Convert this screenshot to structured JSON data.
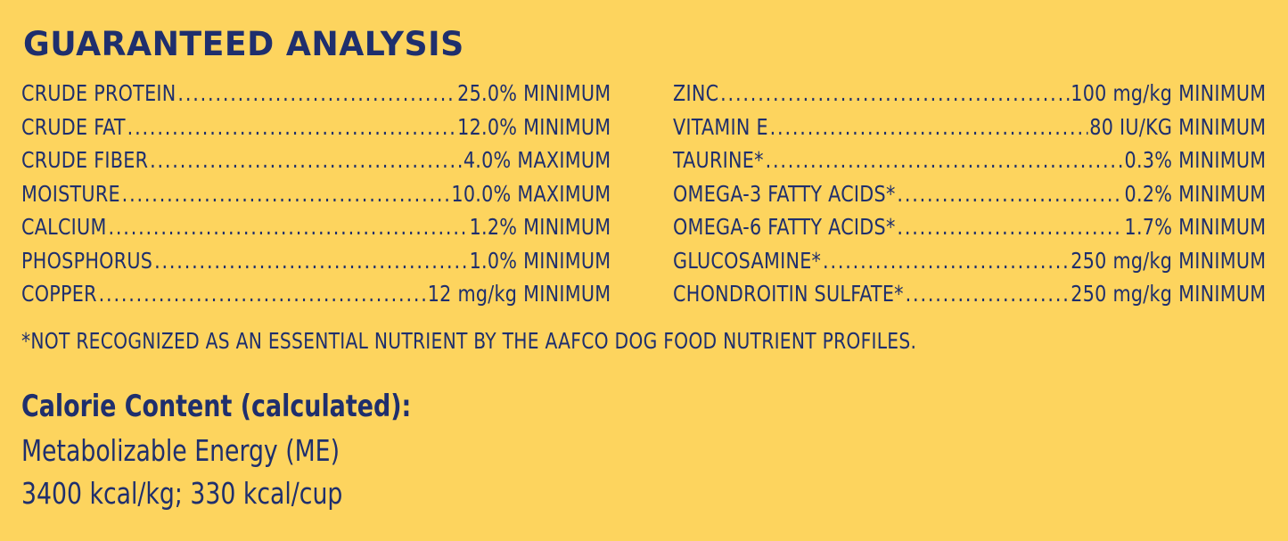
{
  "title": "GUARANTEED ANALYSIS",
  "left_column": [
    {
      "name": "CRUDE PROTEIN",
      "value": "25.0% MINIMUM"
    },
    {
      "name": "CRUDE FAT",
      "value": "12.0% MINIMUM"
    },
    {
      "name": "CRUDE FIBER",
      "value": "4.0% MAXIMUM"
    },
    {
      "name": "MOISTURE",
      "value": "10.0% MAXIMUM"
    },
    {
      "name": "CALCIUM",
      "value": "1.2% MINIMUM"
    },
    {
      "name": "PHOSPHORUS",
      "value": "1.0% MINIMUM"
    },
    {
      "name": "COPPER",
      "value": "12 mg/kg MINIMUM"
    }
  ],
  "right_column": [
    {
      "name": "ZINC",
      "value": "100 mg/kg MINIMUM"
    },
    {
      "name": "VITAMIN E",
      "value": "80 IU/KG MINIMUM"
    },
    {
      "name": "TAURINE*",
      "value": "0.3% MINIMUM"
    },
    {
      "name": "OMEGA-3 FATTY ACIDS*",
      "value": "0.2% MINIMUM"
    },
    {
      "name": "OMEGA-6 FATTY ACIDS*",
      "value": "1.7% MINIMUM"
    },
    {
      "name": "GLUCOSAMINE*",
      "value": "250 mg/kg MINIMUM"
    },
    {
      "name": "CHONDROITIN SULFATE*",
      "value": "250 mg/kg MINIMUM"
    }
  ],
  "footnote": "*NOT RECOGNIZED AS AN ESSENTIAL NUTRIENT BY THE AAFCO DOG FOOD NUTRIENT PROFILES.",
  "calorie": {
    "heading": "Calorie Content (calculated):",
    "line1": "Metabolizable Energy (ME)",
    "line2": "3400 kcal/kg; 330 kcal/cup"
  },
  "colors": {
    "background": "#fdd45e",
    "text": "#1f2f6d"
  }
}
